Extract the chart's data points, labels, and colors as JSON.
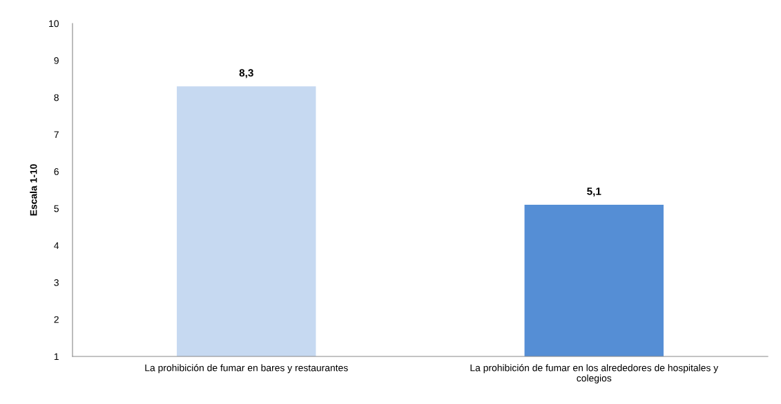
{
  "chart_data": {
    "type": "bar",
    "ylabel": "Escala 1-10",
    "categories": [
      "La prohibición de fumar en bares y restaurantes",
      "La prohibición de fumar en los alrededores de hospitales y\ncolegios"
    ],
    "values": [
      8.3,
      5.1
    ],
    "colors": [
      "#c6d9f1",
      "#558ed5"
    ],
    "value_labels": [
      "8,3",
      "5,1"
    ],
    "ylim": [
      1,
      10
    ],
    "yticks": [
      1,
      2,
      3,
      4,
      5,
      6,
      7,
      8,
      9,
      10
    ],
    "grid": false,
    "legend": false
  }
}
